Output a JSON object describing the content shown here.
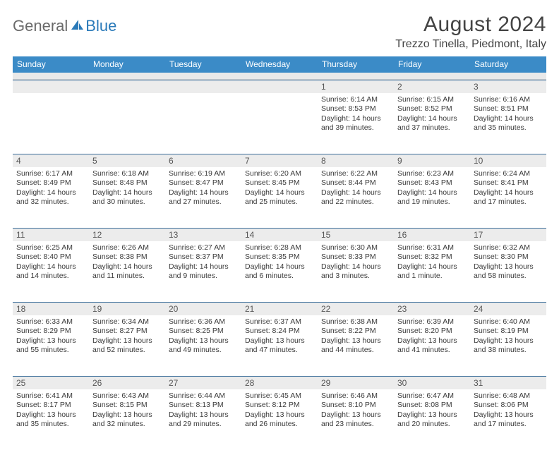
{
  "logo": {
    "general": "General",
    "blue": "Blue"
  },
  "title": "August 2024",
  "location": "Trezzo Tinella, Piedmont, Italy",
  "colors": {
    "header_bg": "#3b8bc7",
    "header_text": "#ffffff",
    "daynum_bg": "#ececec",
    "rule": "#3b6e9a",
    "text": "#3a3a3a",
    "logo_gray": "#6a6a6a",
    "logo_blue": "#2a7ab9"
  },
  "day_names": [
    "Sunday",
    "Monday",
    "Tuesday",
    "Wednesday",
    "Thursday",
    "Friday",
    "Saturday"
  ],
  "weeks": [
    [
      {
        "n": "",
        "sr": "",
        "ss": "",
        "dl": ""
      },
      {
        "n": "",
        "sr": "",
        "ss": "",
        "dl": ""
      },
      {
        "n": "",
        "sr": "",
        "ss": "",
        "dl": ""
      },
      {
        "n": "",
        "sr": "",
        "ss": "",
        "dl": ""
      },
      {
        "n": "1",
        "sr": "Sunrise: 6:14 AM",
        "ss": "Sunset: 8:53 PM",
        "dl": "Daylight: 14 hours and 39 minutes."
      },
      {
        "n": "2",
        "sr": "Sunrise: 6:15 AM",
        "ss": "Sunset: 8:52 PM",
        "dl": "Daylight: 14 hours and 37 minutes."
      },
      {
        "n": "3",
        "sr": "Sunrise: 6:16 AM",
        "ss": "Sunset: 8:51 PM",
        "dl": "Daylight: 14 hours and 35 minutes."
      }
    ],
    [
      {
        "n": "4",
        "sr": "Sunrise: 6:17 AM",
        "ss": "Sunset: 8:49 PM",
        "dl": "Daylight: 14 hours and 32 minutes."
      },
      {
        "n": "5",
        "sr": "Sunrise: 6:18 AM",
        "ss": "Sunset: 8:48 PM",
        "dl": "Daylight: 14 hours and 30 minutes."
      },
      {
        "n": "6",
        "sr": "Sunrise: 6:19 AM",
        "ss": "Sunset: 8:47 PM",
        "dl": "Daylight: 14 hours and 27 minutes."
      },
      {
        "n": "7",
        "sr": "Sunrise: 6:20 AM",
        "ss": "Sunset: 8:45 PM",
        "dl": "Daylight: 14 hours and 25 minutes."
      },
      {
        "n": "8",
        "sr": "Sunrise: 6:22 AM",
        "ss": "Sunset: 8:44 PM",
        "dl": "Daylight: 14 hours and 22 minutes."
      },
      {
        "n": "9",
        "sr": "Sunrise: 6:23 AM",
        "ss": "Sunset: 8:43 PM",
        "dl": "Daylight: 14 hours and 19 minutes."
      },
      {
        "n": "10",
        "sr": "Sunrise: 6:24 AM",
        "ss": "Sunset: 8:41 PM",
        "dl": "Daylight: 14 hours and 17 minutes."
      }
    ],
    [
      {
        "n": "11",
        "sr": "Sunrise: 6:25 AM",
        "ss": "Sunset: 8:40 PM",
        "dl": "Daylight: 14 hours and 14 minutes."
      },
      {
        "n": "12",
        "sr": "Sunrise: 6:26 AM",
        "ss": "Sunset: 8:38 PM",
        "dl": "Daylight: 14 hours and 11 minutes."
      },
      {
        "n": "13",
        "sr": "Sunrise: 6:27 AM",
        "ss": "Sunset: 8:37 PM",
        "dl": "Daylight: 14 hours and 9 minutes."
      },
      {
        "n": "14",
        "sr": "Sunrise: 6:28 AM",
        "ss": "Sunset: 8:35 PM",
        "dl": "Daylight: 14 hours and 6 minutes."
      },
      {
        "n": "15",
        "sr": "Sunrise: 6:30 AM",
        "ss": "Sunset: 8:33 PM",
        "dl": "Daylight: 14 hours and 3 minutes."
      },
      {
        "n": "16",
        "sr": "Sunrise: 6:31 AM",
        "ss": "Sunset: 8:32 PM",
        "dl": "Daylight: 14 hours and 1 minute."
      },
      {
        "n": "17",
        "sr": "Sunrise: 6:32 AM",
        "ss": "Sunset: 8:30 PM",
        "dl": "Daylight: 13 hours and 58 minutes."
      }
    ],
    [
      {
        "n": "18",
        "sr": "Sunrise: 6:33 AM",
        "ss": "Sunset: 8:29 PM",
        "dl": "Daylight: 13 hours and 55 minutes."
      },
      {
        "n": "19",
        "sr": "Sunrise: 6:34 AM",
        "ss": "Sunset: 8:27 PM",
        "dl": "Daylight: 13 hours and 52 minutes."
      },
      {
        "n": "20",
        "sr": "Sunrise: 6:36 AM",
        "ss": "Sunset: 8:25 PM",
        "dl": "Daylight: 13 hours and 49 minutes."
      },
      {
        "n": "21",
        "sr": "Sunrise: 6:37 AM",
        "ss": "Sunset: 8:24 PM",
        "dl": "Daylight: 13 hours and 47 minutes."
      },
      {
        "n": "22",
        "sr": "Sunrise: 6:38 AM",
        "ss": "Sunset: 8:22 PM",
        "dl": "Daylight: 13 hours and 44 minutes."
      },
      {
        "n": "23",
        "sr": "Sunrise: 6:39 AM",
        "ss": "Sunset: 8:20 PM",
        "dl": "Daylight: 13 hours and 41 minutes."
      },
      {
        "n": "24",
        "sr": "Sunrise: 6:40 AM",
        "ss": "Sunset: 8:19 PM",
        "dl": "Daylight: 13 hours and 38 minutes."
      }
    ],
    [
      {
        "n": "25",
        "sr": "Sunrise: 6:41 AM",
        "ss": "Sunset: 8:17 PM",
        "dl": "Daylight: 13 hours and 35 minutes."
      },
      {
        "n": "26",
        "sr": "Sunrise: 6:43 AM",
        "ss": "Sunset: 8:15 PM",
        "dl": "Daylight: 13 hours and 32 minutes."
      },
      {
        "n": "27",
        "sr": "Sunrise: 6:44 AM",
        "ss": "Sunset: 8:13 PM",
        "dl": "Daylight: 13 hours and 29 minutes."
      },
      {
        "n": "28",
        "sr": "Sunrise: 6:45 AM",
        "ss": "Sunset: 8:12 PM",
        "dl": "Daylight: 13 hours and 26 minutes."
      },
      {
        "n": "29",
        "sr": "Sunrise: 6:46 AM",
        "ss": "Sunset: 8:10 PM",
        "dl": "Daylight: 13 hours and 23 minutes."
      },
      {
        "n": "30",
        "sr": "Sunrise: 6:47 AM",
        "ss": "Sunset: 8:08 PM",
        "dl": "Daylight: 13 hours and 20 minutes."
      },
      {
        "n": "31",
        "sr": "Sunrise: 6:48 AM",
        "ss": "Sunset: 8:06 PM",
        "dl": "Daylight: 13 hours and 17 minutes."
      }
    ]
  ]
}
